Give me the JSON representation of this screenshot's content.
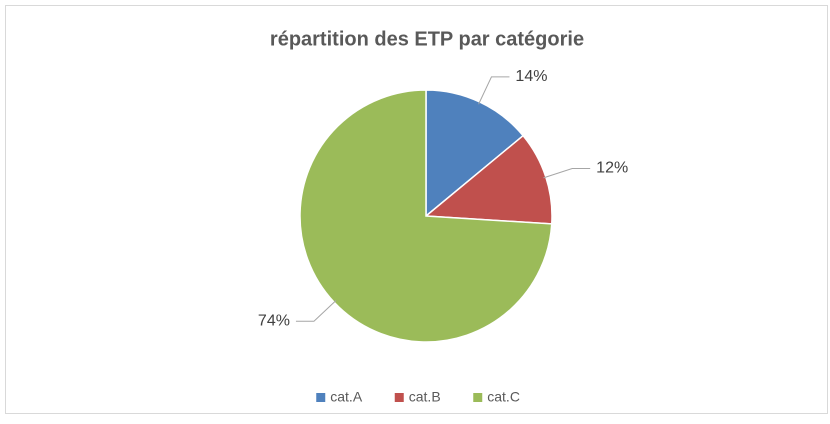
{
  "chart_data": {
    "type": "pie",
    "title": "répartition des ETP par catégorie",
    "categories": [
      "cat.A",
      "cat.B",
      "cat.C"
    ],
    "values": [
      14,
      12,
      74
    ],
    "value_labels": [
      "14%",
      "12%",
      "74%"
    ],
    "colors": [
      "#4f81bd",
      "#c0504d",
      "#9bbb59"
    ],
    "legend": "bottom"
  }
}
